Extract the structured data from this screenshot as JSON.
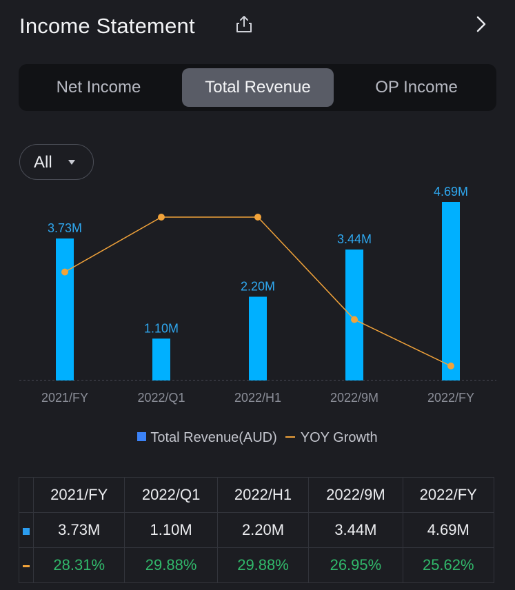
{
  "header": {
    "title": "Income Statement",
    "share_icon": "share-icon",
    "chevron_icon": "chevron-right-icon"
  },
  "tabs": [
    {
      "label": "Net Income",
      "active": false
    },
    {
      "label": "Total Revenue",
      "active": true
    },
    {
      "label": "OP Income",
      "active": false
    }
  ],
  "filter": {
    "label": "All"
  },
  "colors": {
    "bar": "#00b0ff",
    "line": "#f2a33a",
    "legend_bar": "#3b82f6",
    "growth_text": "#31b96b"
  },
  "chart_data": {
    "type": "bar+line",
    "categories": [
      "2021/FY",
      "2022/Q1",
      "2022/H1",
      "2022/9M",
      "2022/FY"
    ],
    "series": [
      {
        "name": "Total Revenue(AUD)",
        "kind": "bar",
        "values": [
          3.73,
          1.1,
          2.2,
          3.44,
          4.69
        ],
        "labels": [
          "3.73M",
          "1.10M",
          "2.20M",
          "3.44M",
          "4.69M"
        ]
      },
      {
        "name": "YOY Growth",
        "kind": "line",
        "values": [
          28.31,
          29.88,
          29.88,
          26.95,
          25.62
        ]
      }
    ],
    "bar_ylim": [
      0,
      4.69
    ],
    "line_ylim": [
      25.62,
      29.88
    ]
  },
  "legend": {
    "bar_label": "Total Revenue(AUD)",
    "line_label": "YOY Growth"
  },
  "table": {
    "headers": [
      "2021/FY",
      "2022/Q1",
      "2022/H1",
      "2022/9M",
      "2022/FY"
    ],
    "revenue": [
      "3.73M",
      "1.10M",
      "2.20M",
      "3.44M",
      "4.69M"
    ],
    "growth": [
      "28.31%",
      "29.88%",
      "29.88%",
      "26.95%",
      "25.62%"
    ]
  }
}
